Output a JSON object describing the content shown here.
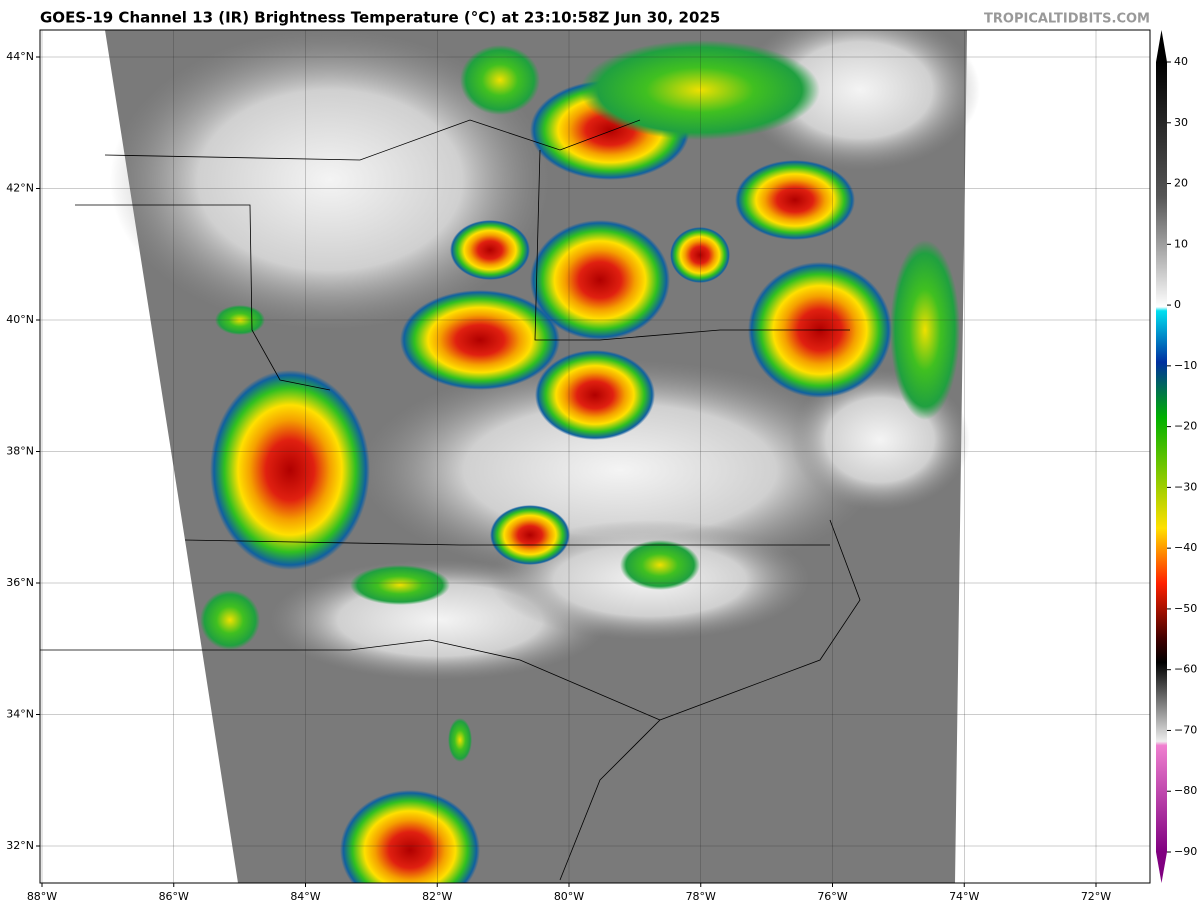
{
  "header": {
    "title": "GOES-19 Channel 13 (IR) Brightness Temperature (°C) at 23:10:58Z Jun 30, 2025",
    "source": "TROPICALTIDBITS.COM"
  },
  "map": {
    "lat_labels": [
      "44°N",
      "42°N",
      "40°N",
      "38°N",
      "36°N",
      "34°N",
      "32°N"
    ],
    "lon_labels": [
      "88°W",
      "86°W",
      "84°W",
      "82°W",
      "80°W",
      "78°W",
      "76°W",
      "74°W",
      "72°W"
    ]
  },
  "colorbar": {
    "ticks": [
      40,
      30,
      20,
      10,
      0,
      {
        "value": -10,
        "label": "−10"
      },
      {
        "value": -20,
        "label": "−20"
      },
      {
        "value": -30,
        "label": "−30"
      },
      {
        "value": -40,
        "label": "−40"
      },
      {
        "value": -50,
        "label": "−50"
      },
      {
        "value": -60,
        "label": "−60"
      },
      {
        "value": -70,
        "label": "−70"
      },
      {
        "value": -80,
        "label": "−80"
      },
      {
        "value": -90,
        "label": "−90"
      }
    ]
  }
}
